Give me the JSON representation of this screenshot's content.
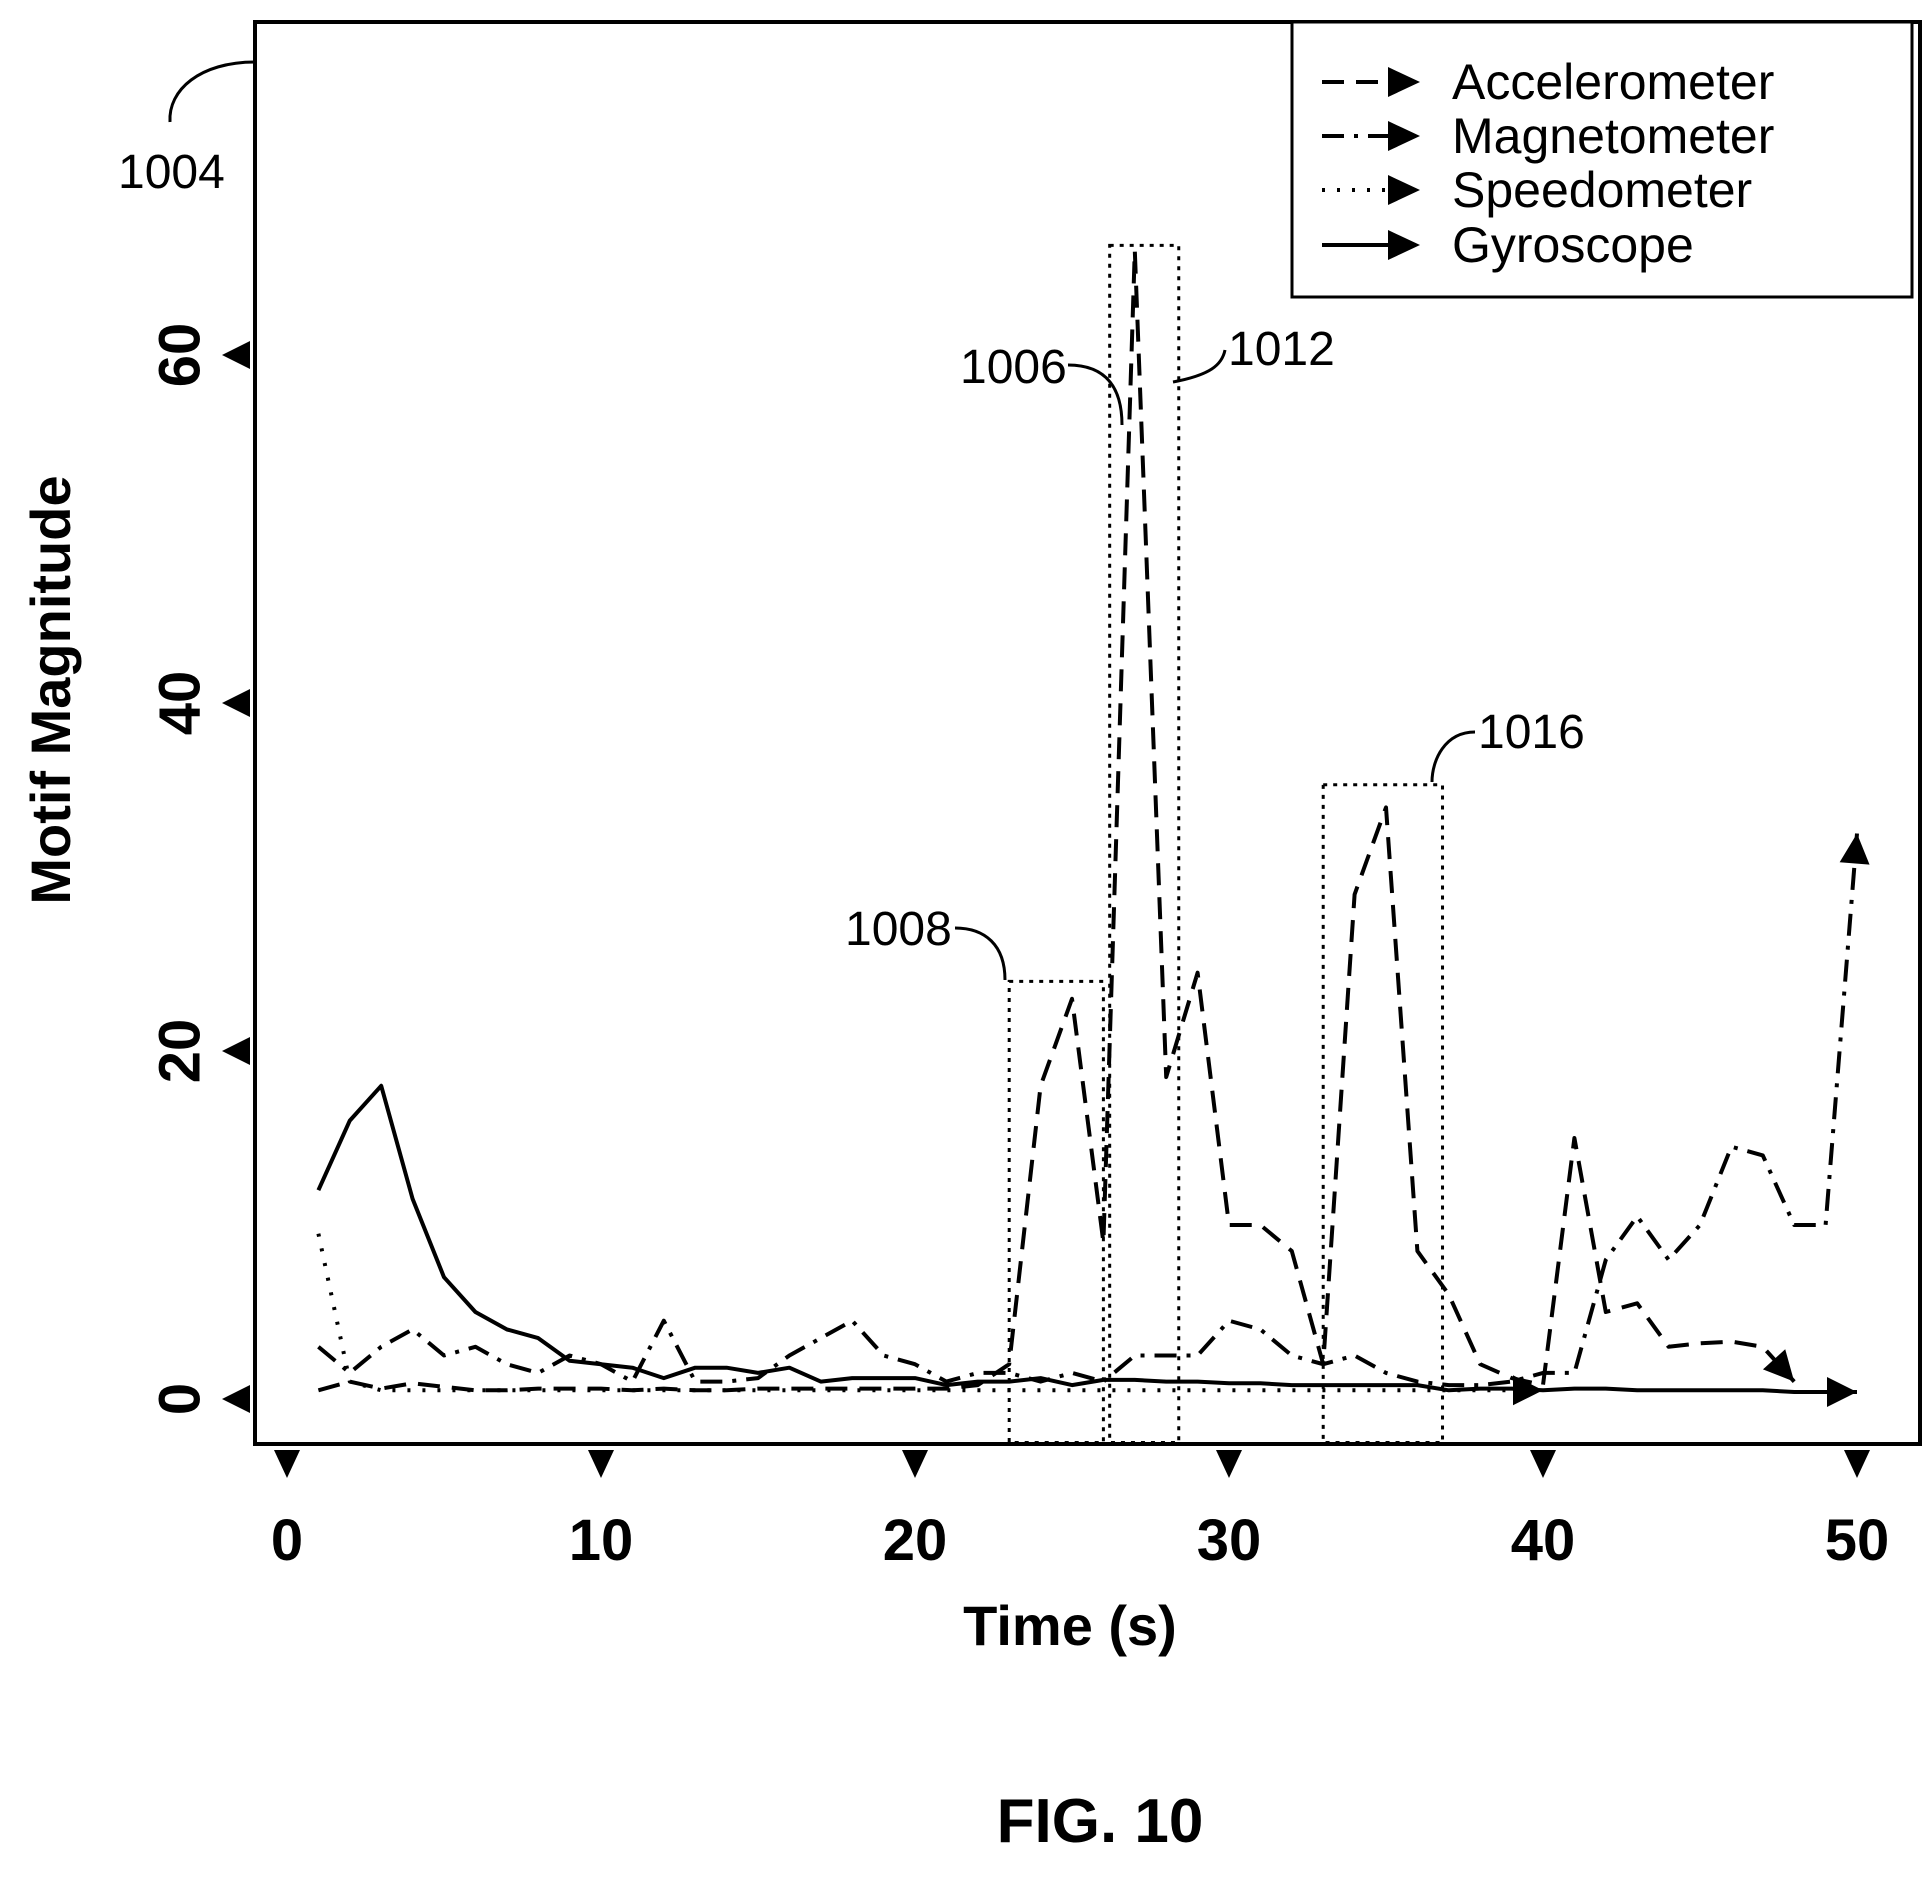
{
  "figure_label": "FIG. 10",
  "chart_data": {
    "type": "line",
    "title": "",
    "xlabel": "Time (s)",
    "ylabel": "Motif Magnitude",
    "xlim": [
      0,
      50
    ],
    "ylim": [
      0,
      68
    ],
    "x_ticks": [
      "0",
      "10",
      "20",
      "30",
      "40",
      "50"
    ],
    "y_ticks": [
      "0",
      "20",
      "40",
      "60"
    ],
    "legend_position": "top-right",
    "grid": false,
    "series": [
      {
        "name": "Accelerometer",
        "style": "dashed",
        "x": [
          1,
          2,
          3,
          4,
          5,
          6,
          7,
          8,
          9,
          10,
          11,
          12,
          13,
          14,
          15,
          16,
          17,
          18,
          19,
          20,
          21,
          22,
          23,
          24,
          25,
          26,
          27,
          28,
          29,
          30,
          31,
          32,
          33,
          34,
          35,
          36,
          37,
          38,
          39,
          40,
          41,
          42,
          43,
          44,
          45,
          46,
          47,
          48,
          49,
          50
        ],
        "y": [
          0.5,
          1.0,
          0.6,
          0.9,
          0.7,
          0.5,
          0.5,
          0.6,
          0.6,
          0.6,
          0.5,
          0.6,
          0.5,
          0.5,
          0.6,
          0.6,
          0.6,
          0.6,
          0.6,
          0.6,
          0.6,
          0.8,
          2.0,
          18.0,
          23.0,
          9.0,
          66.0,
          18.5,
          24.5,
          10.0,
          10.0,
          8.5,
          2.0,
          29.0,
          34.0,
          8.5,
          6.0,
          2.0,
          1.2,
          0.8,
          15.0,
          5.0,
          5.5,
          3.0,
          3.2,
          3.3,
          3.0,
          1.0,
          null,
          null
        ]
      },
      {
        "name": "Magnetometer",
        "style": "dashdot",
        "x": [
          1,
          2,
          3,
          4,
          5,
          6,
          7,
          8,
          9,
          10,
          11,
          12,
          13,
          14,
          15,
          16,
          17,
          18,
          19,
          20,
          21,
          22,
          23,
          24,
          25,
          26,
          27,
          28,
          29,
          30,
          31,
          32,
          33,
          34,
          35,
          36,
          37,
          38,
          39,
          40,
          41,
          42,
          43,
          44,
          45,
          46,
          47,
          48,
          49,
          50
        ],
        "y": [
          3.0,
          1.5,
          3.0,
          4.0,
          2.5,
          3.0,
          2.0,
          1.5,
          2.5,
          2.0,
          1.0,
          4.5,
          1.0,
          1.0,
          1.2,
          2.5,
          3.5,
          4.5,
          2.5,
          2.0,
          1.0,
          1.5,
          1.5,
          1.0,
          1.5,
          1.0,
          2.5,
          2.5,
          2.5,
          4.5,
          4.0,
          2.5,
          2.0,
          2.5,
          1.5,
          1.0,
          0.8,
          0.8,
          1.0,
          1.5,
          1.5,
          8.0,
          10.5,
          8.0,
          10.0,
          14.5,
          14.0,
          10.0,
          10.0,
          32.5
        ]
      },
      {
        "name": "Speedometer",
        "style": "dotted",
        "x": [
          1,
          2,
          3,
          4,
          5,
          6,
          7,
          8,
          9,
          10,
          11,
          12,
          13,
          14,
          15,
          16,
          17,
          18,
          19,
          20,
          21,
          22,
          23,
          24,
          25,
          26,
          27,
          28,
          29,
          30,
          31,
          32,
          33,
          34,
          35,
          36,
          37,
          38,
          39,
          40
        ],
        "y": [
          9.5,
          1.0,
          0.5,
          0.5,
          0.5,
          0.5,
          0.5,
          0.5,
          0.5,
          0.5,
          0.5,
          0.5,
          0.5,
          0.5,
          0.5,
          0.5,
          0.5,
          0.5,
          0.5,
          0.5,
          0.5,
          0.5,
          0.5,
          0.5,
          0.5,
          0.5,
          0.5,
          0.5,
          0.5,
          0.5,
          0.5,
          0.5,
          0.5,
          0.5,
          0.5,
          0.5,
          0.5,
          0.5,
          0.5,
          0.5
        ]
      },
      {
        "name": "Gyroscope",
        "style": "solid",
        "x": [
          1,
          2,
          3,
          4,
          5,
          6,
          7,
          8,
          9,
          10,
          11,
          12,
          13,
          14,
          15,
          16,
          17,
          18,
          19,
          20,
          21,
          22,
          23,
          24,
          25,
          26,
          27,
          28,
          29,
          30,
          31,
          32,
          33,
          34,
          35,
          36,
          37,
          38,
          39,
          40,
          41,
          42,
          43,
          44,
          45,
          46,
          47,
          48,
          49,
          50
        ],
        "y": [
          12.0,
          16.0,
          18.0,
          11.5,
          7.0,
          5.0,
          4.0,
          3.5,
          2.2,
          2.0,
          1.8,
          1.2,
          1.8,
          1.8,
          1.5,
          1.8,
          1.0,
          1.2,
          1.2,
          1.2,
          0.8,
          1.0,
          1.0,
          1.2,
          0.8,
          1.1,
          1.1,
          1.0,
          1.0,
          0.9,
          0.9,
          0.8,
          0.8,
          0.8,
          0.8,
          0.8,
          0.5,
          0.6,
          0.6,
          0.5,
          0.6,
          0.6,
          0.5,
          0.5,
          0.5,
          0.5,
          0.5,
          0.4,
          0.4,
          0.4
        ]
      }
    ],
    "highlight_boxes": [
      {
        "label": "1008",
        "x0": 23.0,
        "x1": 26.0,
        "y0": -2.5,
        "y1": 24.0
      },
      {
        "label": "1006",
        "x0": 26.2,
        "x1": 28.4,
        "y0": -2.5,
        "y1": 66.3
      },
      {
        "label": "1016",
        "x0": 33.0,
        "x1": 36.8,
        "y0": -2.5,
        "y1": 35.3
      }
    ],
    "reference_labels": [
      "1004",
      "1006",
      "1012",
      "1008",
      "1016"
    ]
  }
}
